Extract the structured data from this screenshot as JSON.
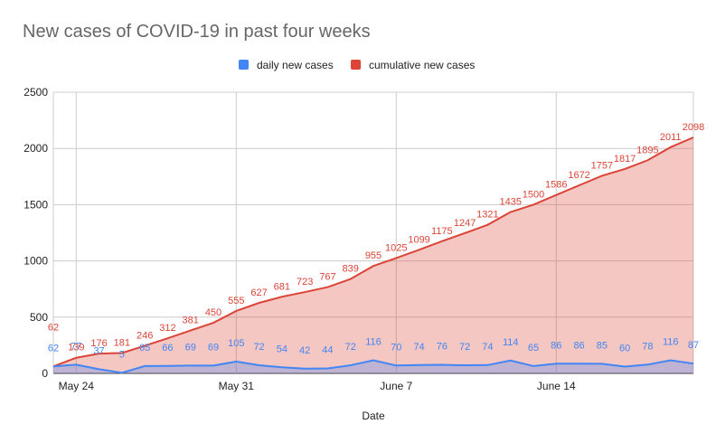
{
  "chart_data": {
    "type": "area",
    "title": "New cases of COVID-19 in past four weeks",
    "xlabel": "Date",
    "ylabel": "",
    "ylim": [
      0,
      2500
    ],
    "yticks": [
      0,
      500,
      1000,
      1500,
      2000,
      2500
    ],
    "xtick_labels": [
      {
        "index": 1,
        "label": "May 24"
      },
      {
        "index": 8,
        "label": "May 31"
      },
      {
        "index": 15,
        "label": "June 7"
      },
      {
        "index": 22,
        "label": "June 14"
      }
    ],
    "grid": true,
    "legend_position": "top",
    "series": [
      {
        "name": "daily new cases",
        "color": "#4285f4",
        "values": [
          62,
          77,
          37,
          5,
          65,
          66,
          69,
          69,
          105,
          72,
          54,
          42,
          44,
          72,
          116,
          70,
          74,
          76,
          72,
          74,
          114,
          65,
          86,
          86,
          85,
          60,
          78,
          116,
          87
        ]
      },
      {
        "name": "cumulative new cases",
        "color": "#db4437",
        "values": [
          62,
          139,
          176,
          181,
          246,
          312,
          381,
          450,
          555,
          627,
          681,
          723,
          767,
          839,
          955,
          1025,
          1099,
          1175,
          1247,
          1321,
          1435,
          1500,
          1586,
          1672,
          1757,
          1817,
          1895,
          2011,
          2098
        ]
      }
    ]
  }
}
